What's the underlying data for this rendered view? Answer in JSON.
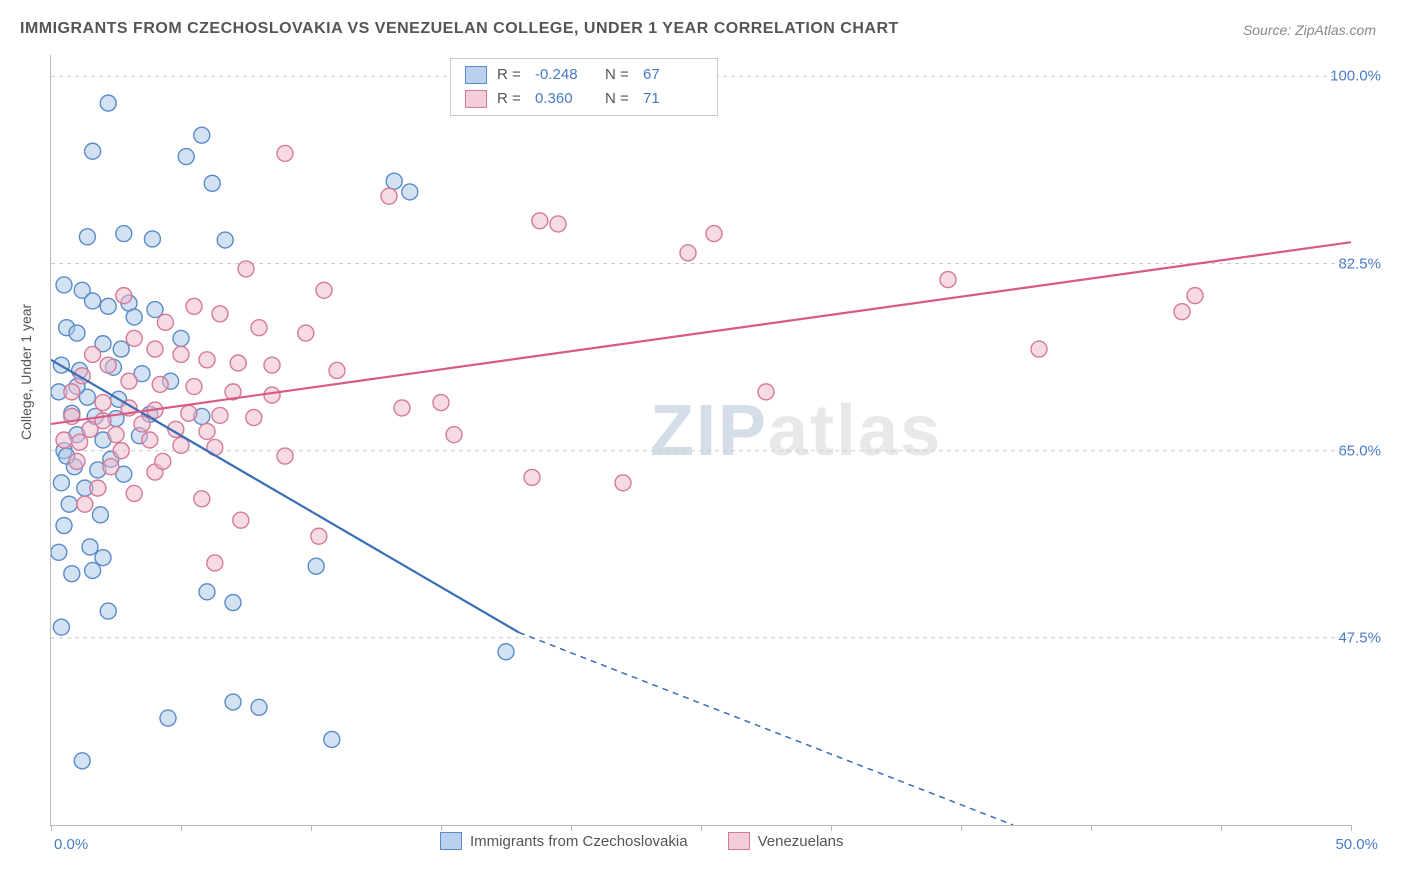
{
  "title": "IMMIGRANTS FROM CZECHOSLOVAKIA VS VENEZUELAN COLLEGE, UNDER 1 YEAR CORRELATION CHART",
  "source": "Source: ZipAtlas.com",
  "y_axis_label": "College, Under 1 year",
  "watermark": {
    "zip": "ZIP",
    "atlas": "atlas"
  },
  "chart": {
    "type": "scatter",
    "background_color": "#ffffff",
    "grid_color": "#cccccc",
    "axis_color": "#bbbbbb",
    "xlim": [
      0,
      50
    ],
    "ylim": [
      30,
      102
    ],
    "x_tick_labels": {
      "min": "0.0%",
      "max": "50.0%"
    },
    "x_minor_ticks": [
      0,
      5,
      10,
      15,
      20,
      25,
      30,
      35,
      40,
      45,
      50
    ],
    "y_tick_values": [
      47.5,
      65.0,
      82.5,
      100.0
    ],
    "y_tick_labels": [
      "47.5%",
      "65.0%",
      "82.5%",
      "100.0%"
    ],
    "marker_radius": 8,
    "marker_fill_opacity": 0.5,
    "marker_stroke_width": 1.4,
    "line_width": 2.2
  },
  "series": {
    "czech": {
      "label": "Immigrants from Czechoslovakia",
      "color_stroke": "#5a8bc9",
      "color_fill": "#a8c5e8",
      "R_label": "R =",
      "R": "-0.248",
      "N_label": "N =",
      "N": "67",
      "trend": {
        "x1": 0,
        "y1": 73.5,
        "x2": 18,
        "y2": 48.0,
        "x_dash_to": 37,
        "y_dash_to": 30
      },
      "points": [
        [
          2.2,
          97.5
        ],
        [
          5.8,
          94.5
        ],
        [
          5.2,
          92.5
        ],
        [
          1.6,
          93.0
        ],
        [
          6.2,
          90.0
        ],
        [
          13.2,
          90.2
        ],
        [
          13.8,
          89.2
        ],
        [
          1.4,
          85.0
        ],
        [
          2.8,
          85.3
        ],
        [
          3.9,
          84.8
        ],
        [
          6.7,
          84.7
        ],
        [
          0.5,
          80.5
        ],
        [
          1.2,
          80.0
        ],
        [
          1.6,
          79.0
        ],
        [
          2.2,
          78.5
        ],
        [
          3.0,
          78.8
        ],
        [
          3.2,
          77.5
        ],
        [
          0.6,
          76.5
        ],
        [
          1.0,
          76.0
        ],
        [
          2.0,
          75.0
        ],
        [
          2.7,
          74.5
        ],
        [
          0.4,
          73.0
        ],
        [
          1.1,
          72.5
        ],
        [
          2.4,
          72.8
        ],
        [
          3.5,
          72.2
        ],
        [
          4.6,
          71.5
        ],
        [
          0.3,
          70.5
        ],
        [
          1.4,
          70.0
        ],
        [
          2.6,
          69.8
        ],
        [
          0.8,
          68.5
        ],
        [
          1.7,
          68.2
        ],
        [
          2.5,
          68.0
        ],
        [
          3.8,
          68.4
        ],
        [
          5.8,
          68.2
        ],
        [
          1.0,
          66.5
        ],
        [
          2.0,
          66.0
        ],
        [
          3.4,
          66.4
        ],
        [
          0.5,
          65.0
        ],
        [
          2.3,
          64.2
        ],
        [
          0.9,
          63.5
        ],
        [
          1.8,
          63.2
        ],
        [
          2.8,
          62.8
        ],
        [
          0.4,
          62.0
        ],
        [
          1.3,
          61.5
        ],
        [
          0.7,
          60.0
        ],
        [
          1.9,
          59.0
        ],
        [
          0.5,
          58.0
        ],
        [
          2.0,
          55.0
        ],
        [
          0.8,
          53.5
        ],
        [
          1.6,
          53.8
        ],
        [
          6.0,
          51.8
        ],
        [
          7.0,
          50.8
        ],
        [
          10.2,
          54.2
        ],
        [
          0.4,
          48.5
        ],
        [
          17.5,
          46.2
        ],
        [
          7.0,
          41.5
        ],
        [
          8.0,
          41.0
        ],
        [
          4.5,
          40.0
        ],
        [
          10.8,
          38.0
        ],
        [
          1.2,
          36.0
        ],
        [
          4.0,
          78.2
        ],
        [
          5.0,
          75.5
        ],
        [
          1.0,
          71.0
        ],
        [
          0.6,
          64.5
        ],
        [
          1.5,
          56.0
        ],
        [
          0.3,
          55.5
        ],
        [
          2.2,
          50.0
        ]
      ]
    },
    "venezuelan": {
      "label": "Venezuelans",
      "color_stroke": "#d57a97",
      "color_fill": "#f0b8c9",
      "R_label": "R =",
      "R": "0.360",
      "N_label": "N =",
      "N": "71",
      "trend": {
        "x1": 0,
        "y1": 67.5,
        "x2": 50,
        "y2": 84.5
      },
      "points": [
        [
          9.0,
          92.8
        ],
        [
          13.0,
          88.8
        ],
        [
          18.8,
          86.5
        ],
        [
          19.5,
          86.2
        ],
        [
          25.5,
          85.3
        ],
        [
          24.5,
          83.5
        ],
        [
          7.5,
          82.0
        ],
        [
          10.5,
          80.0
        ],
        [
          34.5,
          81.0
        ],
        [
          44.0,
          79.5
        ],
        [
          38.0,
          74.5
        ],
        [
          43.5,
          78.0
        ],
        [
          5.5,
          78.5
        ],
        [
          6.5,
          77.8
        ],
        [
          8.0,
          76.5
        ],
        [
          9.8,
          76.0
        ],
        [
          4.0,
          74.5
        ],
        [
          5.0,
          74.0
        ],
        [
          6.0,
          73.5
        ],
        [
          7.2,
          73.2
        ],
        [
          8.5,
          73.0
        ],
        [
          3.0,
          71.5
        ],
        [
          4.2,
          71.2
        ],
        [
          5.5,
          71.0
        ],
        [
          7.0,
          70.5
        ],
        [
          8.5,
          70.2
        ],
        [
          2.2,
          73.0
        ],
        [
          1.2,
          72.0
        ],
        [
          2.0,
          69.5
        ],
        [
          3.0,
          69.0
        ],
        [
          4.0,
          68.8
        ],
        [
          5.3,
          68.5
        ],
        [
          6.5,
          68.3
        ],
        [
          7.8,
          68.1
        ],
        [
          13.5,
          69.0
        ],
        [
          15.0,
          69.5
        ],
        [
          27.5,
          70.5
        ],
        [
          1.5,
          67.0
        ],
        [
          2.5,
          66.5
        ],
        [
          3.8,
          66.0
        ],
        [
          5.0,
          65.5
        ],
        [
          6.3,
          65.3
        ],
        [
          15.5,
          66.5
        ],
        [
          1.0,
          64.0
        ],
        [
          2.3,
          63.5
        ],
        [
          4.0,
          63.0
        ],
        [
          18.5,
          62.5
        ],
        [
          22.0,
          62.0
        ],
        [
          1.8,
          61.5
        ],
        [
          3.2,
          61.0
        ],
        [
          0.8,
          68.2
        ],
        [
          2.0,
          67.8
        ],
        [
          7.3,
          58.5
        ],
        [
          10.3,
          57.0
        ],
        [
          6.3,
          54.5
        ],
        [
          4.3,
          64.0
        ],
        [
          2.7,
          65.0
        ],
        [
          1.1,
          65.8
        ],
        [
          3.5,
          67.5
        ],
        [
          4.8,
          67.0
        ],
        [
          6.0,
          66.8
        ],
        [
          9.0,
          64.5
        ],
        [
          11.0,
          72.5
        ],
        [
          0.8,
          70.5
        ],
        [
          1.6,
          74.0
        ],
        [
          3.2,
          75.5
        ],
        [
          4.4,
          77.0
        ],
        [
          2.8,
          79.5
        ],
        [
          0.5,
          66.0
        ],
        [
          1.3,
          60.0
        ],
        [
          5.8,
          60.5
        ]
      ]
    }
  }
}
